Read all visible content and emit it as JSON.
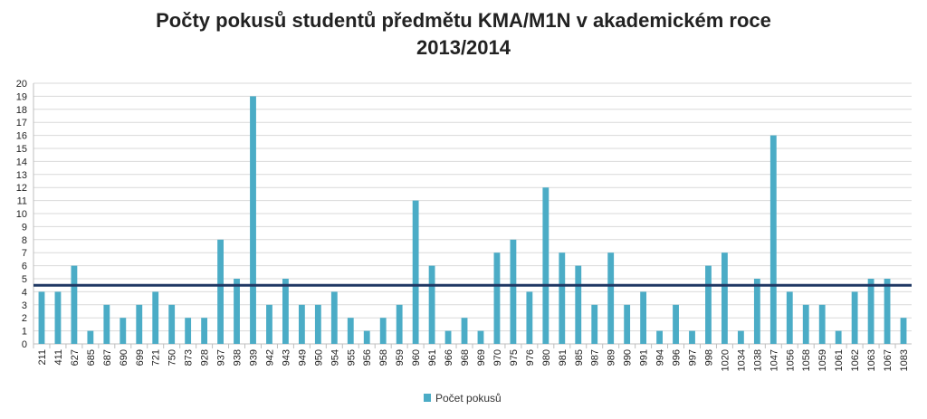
{
  "chart_data": {
    "type": "bar",
    "title_line1": "Počty pokusů studentů předmětu KMA/M1N v akademickém roce",
    "title_line2": "2013/2014",
    "xlabel": "",
    "ylabel": "",
    "ylim": [
      0,
      20
    ],
    "yticks": [
      0,
      1,
      2,
      3,
      4,
      5,
      6,
      7,
      8,
      9,
      10,
      11,
      12,
      13,
      14,
      15,
      16,
      17,
      18,
      19,
      20
    ],
    "grid": true,
    "legend": "bottom",
    "categories": [
      "211",
      "411",
      "627",
      "685",
      "687",
      "690",
      "699",
      "721",
      "750",
      "873",
      "928",
      "937",
      "938",
      "939",
      "942",
      "943",
      "949",
      "950",
      "954",
      "955",
      "956",
      "958",
      "959",
      "960",
      "961",
      "966",
      "968",
      "969",
      "970",
      "975",
      "976",
      "980",
      "981",
      "985",
      "987",
      "989",
      "990",
      "991",
      "994",
      "996",
      "997",
      "998",
      "1020",
      "1034",
      "1038",
      "1047",
      "1056",
      "1058",
      "1059",
      "1061",
      "1062",
      "1063",
      "1067",
      "1083"
    ],
    "series": [
      {
        "name": "Počet pokusů",
        "color": "#4bacc6",
        "values": [
          4,
          4,
          6,
          1,
          3,
          2,
          3,
          4,
          3,
          2,
          2,
          8,
          5,
          19,
          3,
          5,
          3,
          3,
          4,
          2,
          1,
          2,
          3,
          11,
          6,
          1,
          2,
          1,
          7,
          8,
          4,
          12,
          7,
          6,
          3,
          7,
          3,
          4,
          1,
          3,
          1,
          6,
          7,
          1,
          5,
          16,
          4,
          3,
          3,
          1,
          4,
          5,
          5,
          2
        ]
      }
    ],
    "reference_line": {
      "value": 4.5,
      "color": "#1f3864"
    },
    "grid_color": "#d9d9d9"
  }
}
